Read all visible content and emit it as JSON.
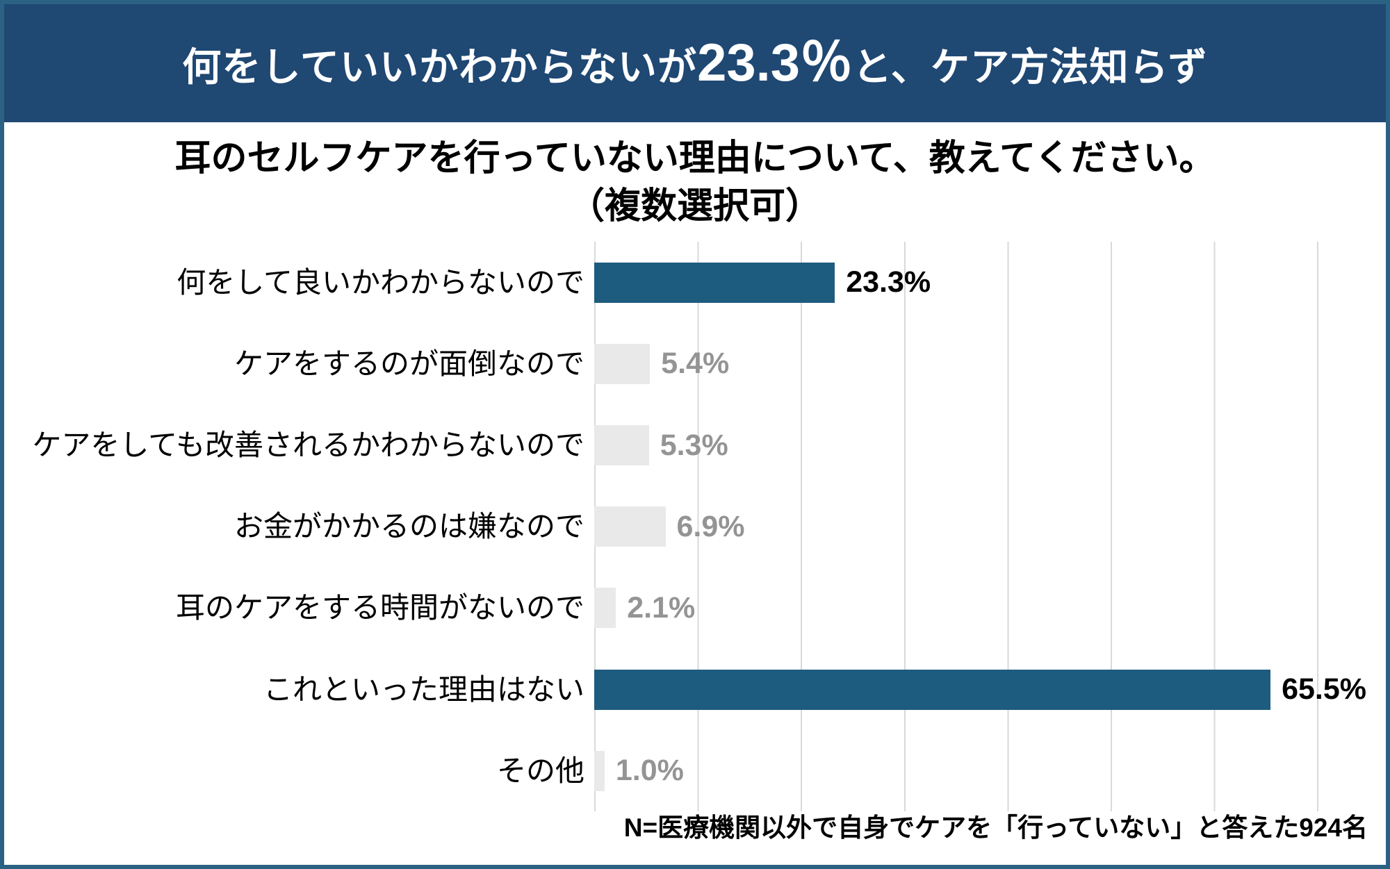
{
  "header": {
    "title_prefix": "何をしていいかわからないが",
    "title_number": "23.3％",
    "title_suffix": "と、ケア方法知らず"
  },
  "question": {
    "line1": "耳のセルフケアを行っていない理由について、教えてください。",
    "line2": "（複数選択可）"
  },
  "chart_data": {
    "type": "bar",
    "orientation": "horizontal",
    "title": "耳のセルフケアを行っていない理由について、教えてください。（複数選択可）",
    "xlabel": "",
    "ylabel": "",
    "xlim": [
      0,
      70
    ],
    "gridline_interval": 10,
    "grid": true,
    "legend": false,
    "categories": [
      "何をして良いかわからないので",
      "ケアをするのが面倒なので",
      "ケアをしても改善されるかわからないので",
      "お金がかかるのは嫌なので",
      "耳のケアをする時間がないので",
      "これといった理由はない",
      "その他"
    ],
    "values": [
      23.3,
      5.4,
      5.3,
      6.9,
      2.1,
      65.5,
      1.0
    ],
    "value_labels": [
      "23.3%",
      "5.4%",
      "5.3%",
      "6.9%",
      "2.1%",
      "65.5%",
      "1.0%"
    ],
    "emphasized": [
      true,
      false,
      false,
      false,
      false,
      true,
      false
    ],
    "footnote": "N=医療機関以外で自身でケアを「行っていない」と答えた924名"
  },
  "colors": {
    "header_bg": "#1F4873",
    "header_text": "#FFFFFF",
    "bar_emphasis": "#1D5C7E",
    "bar_default": "#E9E9E9",
    "value_emphasis": "#000000",
    "value_default": "#949494",
    "gridline": "#D9D9D9",
    "frame_border": "#2B6284"
  }
}
